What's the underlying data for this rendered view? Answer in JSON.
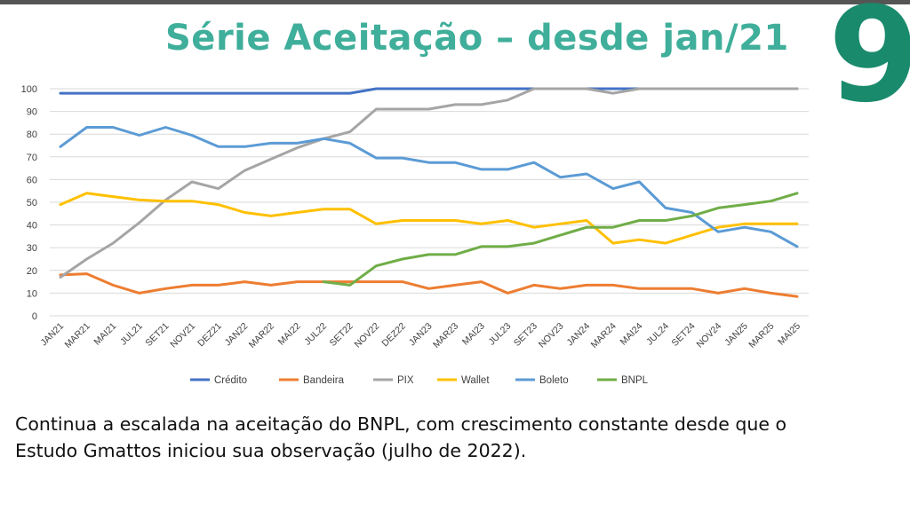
{
  "header": {
    "title": "Série Aceitação – desde jan/21",
    "page_number": "9"
  },
  "caption": {
    "line1": "Continua a escalada na aceitação do BNPL, com crescimento constante desde que o",
    "line2": "Estudo Gmattos iniciou sua observação (julho de 2022)."
  },
  "chart_data": {
    "type": "line",
    "title": "",
    "xlabel": "",
    "ylabel": "",
    "ylim": [
      0,
      100
    ],
    "yticks": [
      0,
      10,
      20,
      30,
      40,
      50,
      60,
      70,
      80,
      90,
      100
    ],
    "grid": true,
    "legend_position": "bottom",
    "categories": [
      "JAN21",
      "MAR21",
      "MAI21",
      "JUL21",
      "SET21",
      "NOV21",
      "DEZ21",
      "JAN22",
      "MAR22",
      "MAI22",
      "JUL22",
      "SET22",
      "NOV22",
      "DEZ22",
      "JAN23",
      "MAR23",
      "MAI23",
      "JUL23",
      "SET23",
      "NOV23",
      "JAN24",
      "MAR24",
      "MAI24",
      "JUL24",
      "SET24",
      "NOV24",
      "JAN25",
      "MAR25",
      "MAI25"
    ],
    "series": [
      {
        "name": "Crédito",
        "color": "#4472c4",
        "values": [
          98,
          98,
          98,
          98,
          98,
          98,
          98,
          98,
          98,
          98,
          98,
          98,
          100,
          100,
          100,
          100,
          100,
          100,
          100,
          100,
          100,
          100,
          100,
          100,
          100,
          100,
          100,
          100,
          100
        ]
      },
      {
        "name": "Bandeira",
        "color": "#ed7d31",
        "values": [
          18,
          18.5,
          13.5,
          10,
          12,
          13.5,
          13.5,
          15,
          13.5,
          15,
          15,
          15,
          15,
          15,
          12,
          13.5,
          15,
          10,
          13.5,
          12,
          13.5,
          13.5,
          12,
          12,
          12,
          10,
          12,
          10,
          8.5
        ]
      },
      {
        "name": "PIX",
        "color": "#a5a5a5",
        "values": [
          17,
          25,
          32,
          41,
          51,
          59,
          56,
          64,
          69,
          74,
          78,
          81,
          91,
          91,
          91,
          93,
          93,
          95,
          100,
          100,
          100,
          98,
          100,
          100,
          100,
          100,
          100,
          100,
          100
        ]
      },
      {
        "name": "Wallet",
        "color": "#ffc000",
        "values": [
          49,
          54,
          52.5,
          51,
          50.5,
          50.5,
          49,
          45.5,
          44,
          45.5,
          47,
          47,
          40.5,
          42,
          42,
          42,
          40.5,
          42,
          39,
          40.5,
          42,
          32,
          33.5,
          32,
          35.5,
          39,
          40.5,
          40.5,
          40.5
        ]
      },
      {
        "name": "Boleto",
        "color": "#5b9bd5",
        "values": [
          74.5,
          83,
          83,
          79.5,
          83,
          79.5,
          74.5,
          74.5,
          76,
          76,
          78,
          76,
          69.5,
          69.5,
          67.5,
          67.5,
          64.5,
          64.5,
          67.5,
          61,
          62.5,
          56,
          59,
          47.5,
          45.5,
          37,
          39,
          37,
          30.5
        ]
      },
      {
        "name": "BNPL",
        "color": "#70ad47",
        "values": [
          null,
          null,
          null,
          null,
          null,
          null,
          null,
          null,
          null,
          null,
          15,
          13.5,
          22,
          25,
          27,
          27,
          30.5,
          30.5,
          32,
          35.5,
          39,
          39,
          42,
          42,
          44,
          47.5,
          49,
          50.5,
          54
        ]
      }
    ]
  }
}
